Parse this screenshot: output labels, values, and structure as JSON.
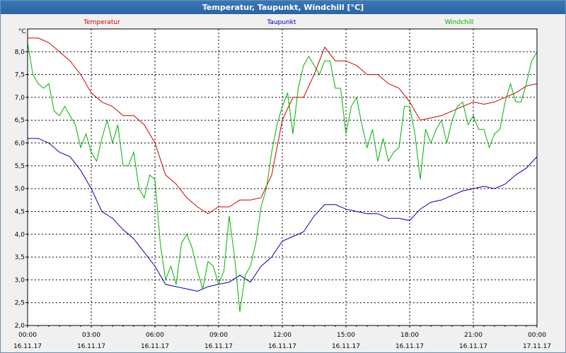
{
  "window": {
    "title": "Temperatur, Taupunkt, Windchill [°C]"
  },
  "chart_data": {
    "type": "line",
    "title": "Temperatur, Taupunkt, Windchill [°C]",
    "ylabel": "°C",
    "xlabel": "",
    "ylim": [
      2.0,
      8.5
    ],
    "xlim": [
      0,
      24
    ],
    "grid": true,
    "yticks": [
      2.0,
      2.5,
      3.0,
      3.5,
      4.0,
      4.5,
      5.0,
      5.5,
      6.0,
      6.5,
      7.0,
      7.5,
      8.0
    ],
    "ytick_labels": [
      "2,0",
      "2,5",
      "3,0",
      "3,5",
      "4,0",
      "4,5",
      "5,0",
      "5,5",
      "6,0",
      "6,5",
      "7,0",
      "7,5",
      "8,0"
    ],
    "xticks": [
      {
        "t": 0,
        "time": "00:00",
        "date": "16.11.17"
      },
      {
        "t": 3,
        "time": "03:00",
        "date": "16.11.17"
      },
      {
        "t": 6,
        "time": "06:00",
        "date": "16.11.17"
      },
      {
        "t": 9,
        "time": "09:00",
        "date": "16.11.17"
      },
      {
        "t": 12,
        "time": "12:00",
        "date": "16.11.17"
      },
      {
        "t": 15,
        "time": "15:00",
        "date": "16.11.17"
      },
      {
        "t": 18,
        "time": "18:00",
        "date": "16.11.17"
      },
      {
        "t": 21,
        "time": "21:00",
        "date": "16.11.17"
      },
      {
        "t": 24,
        "time": "00:00",
        "date": "17.11.17"
      }
    ],
    "series": [
      {
        "name": "Temperatur",
        "color": "#d00000",
        "x": [
          0,
          0.5,
          1,
          1.5,
          2,
          2.5,
          3,
          3.5,
          4,
          4.5,
          5,
          5.5,
          6,
          6.5,
          7,
          7.5,
          8,
          8.5,
          9,
          9.5,
          10,
          10.5,
          11,
          11.5,
          12,
          12.5,
          13,
          13.5,
          14,
          14.5,
          15,
          15.5,
          16,
          16.5,
          17,
          17.5,
          18,
          18.5,
          19,
          19.5,
          20,
          20.5,
          21,
          21.5,
          22,
          22.5,
          23,
          23.5,
          24
        ],
        "values": [
          8.3,
          8.3,
          8.2,
          8.0,
          7.8,
          7.5,
          7.1,
          6.9,
          6.8,
          6.6,
          6.6,
          6.4,
          6.0,
          5.3,
          5.1,
          4.8,
          4.6,
          4.45,
          4.6,
          4.6,
          4.75,
          4.75,
          4.8,
          5.3,
          6.5,
          7.0,
          7.0,
          7.5,
          8.1,
          7.8,
          7.8,
          7.7,
          7.5,
          7.5,
          7.3,
          7.2,
          6.9,
          6.5,
          6.55,
          6.6,
          6.7,
          6.8,
          6.9,
          6.85,
          6.9,
          7.0,
          7.1,
          7.25,
          7.3
        ]
      },
      {
        "name": "Taupunkt",
        "color": "#0000b0",
        "x": [
          0,
          0.5,
          1,
          1.5,
          2,
          2.5,
          3,
          3.5,
          4,
          4.5,
          5,
          5.5,
          6,
          6.5,
          7,
          7.5,
          8,
          8.5,
          9,
          9.5,
          10,
          10.5,
          11,
          11.5,
          12,
          12.5,
          13,
          13.5,
          14,
          14.5,
          15,
          15.5,
          16,
          16.5,
          17,
          17.5,
          18,
          18.5,
          19,
          19.5,
          20,
          20.5,
          21,
          21.5,
          22,
          22.5,
          23,
          23.5,
          24
        ],
        "values": [
          6.1,
          6.1,
          6.0,
          5.8,
          5.7,
          5.4,
          5.0,
          4.5,
          4.35,
          4.1,
          3.9,
          3.6,
          3.3,
          2.9,
          2.85,
          2.8,
          2.75,
          2.85,
          2.9,
          2.95,
          3.1,
          2.95,
          3.3,
          3.5,
          3.85,
          3.95,
          4.05,
          4.4,
          4.65,
          4.65,
          4.55,
          4.5,
          4.45,
          4.45,
          4.35,
          4.35,
          4.3,
          4.55,
          4.7,
          4.75,
          4.85,
          4.95,
          5.0,
          5.05,
          5.0,
          5.1,
          5.3,
          5.45,
          5.7
        ]
      },
      {
        "name": "Windchill",
        "color": "#00b000",
        "x": [
          0,
          0.25,
          0.5,
          0.75,
          1,
          1.25,
          1.5,
          1.75,
          2,
          2.25,
          2.5,
          2.75,
          3,
          3.25,
          3.5,
          3.75,
          4,
          4.25,
          4.5,
          4.75,
          5,
          5.25,
          5.5,
          5.75,
          6,
          6.25,
          6.5,
          6.75,
          7,
          7.25,
          7.5,
          7.75,
          8,
          8.25,
          8.5,
          8.75,
          9,
          9.25,
          9.5,
          9.75,
          10,
          10.25,
          10.5,
          10.75,
          11,
          11.25,
          11.5,
          11.75,
          12,
          12.25,
          12.5,
          12.75,
          13,
          13.25,
          13.5,
          13.75,
          14,
          14.25,
          14.5,
          14.75,
          15,
          15.25,
          15.5,
          15.75,
          16,
          16.25,
          16.5,
          16.75,
          17,
          17.25,
          17.5,
          17.75,
          18,
          18.25,
          18.5,
          18.75,
          19,
          19.25,
          19.5,
          19.75,
          20,
          20.25,
          20.5,
          20.75,
          21,
          21.25,
          21.5,
          21.75,
          22,
          22.25,
          22.5,
          22.75,
          23,
          23.25,
          23.5,
          23.75,
          24
        ],
        "values": [
          8.2,
          7.5,
          7.3,
          7.2,
          7.3,
          6.7,
          6.6,
          6.8,
          6.6,
          6.4,
          5.9,
          6.2,
          5.8,
          5.6,
          6.1,
          6.5,
          6.0,
          6.4,
          5.5,
          5.5,
          5.8,
          5.0,
          4.8,
          5.3,
          5.2,
          3.8,
          3.0,
          3.3,
          2.9,
          3.8,
          4.0,
          3.7,
          3.2,
          2.8,
          3.4,
          3.3,
          2.9,
          3.2,
          4.4,
          3.5,
          2.3,
          3.1,
          3.3,
          3.8,
          4.6,
          5.0,
          5.8,
          6.4,
          6.8,
          7.1,
          6.2,
          7.2,
          7.7,
          7.9,
          7.7,
          7.5,
          7.8,
          7.8,
          7.2,
          7.2,
          6.2,
          6.8,
          7.0,
          6.4,
          5.9,
          6.3,
          5.6,
          6.1,
          5.6,
          5.8,
          5.9,
          6.8,
          6.8,
          6.2,
          5.2,
          6.3,
          6.0,
          6.3,
          6.5,
          6.0,
          6.5,
          6.8,
          6.9,
          6.4,
          6.6,
          6.3,
          6.3,
          5.9,
          6.2,
          6.3,
          6.9,
          7.3,
          6.9,
          6.9,
          7.3,
          7.8,
          8.0
        ]
      }
    ]
  }
}
